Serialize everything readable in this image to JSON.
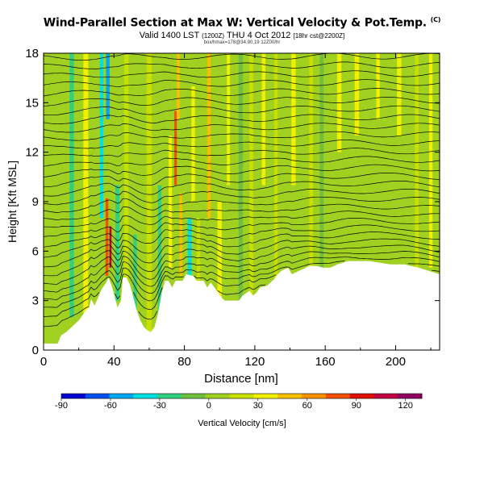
{
  "title": {
    "main": "Wind-Parallel Section at Max W: Vertical Velocity & Pot.Temp.",
    "main_mark": "(C)",
    "line2_a": "Valid 1400 LST",
    "line2_small1": "(1200Z)",
    "line2_b": "THU 4 Oct 2012",
    "line2_small2": "[18hr cst@2200Z]",
    "line3": "box/hmax=178@34.90,19 12Z00/hr"
  },
  "chart_data": {
    "type": "heatmap",
    "x": {
      "label": "Distance [nm]",
      "range": [
        0,
        225
      ],
      "ticks": [
        0,
        40,
        80,
        120,
        160,
        200
      ]
    },
    "y": {
      "label": "Height [Kft MSL]",
      "range": [
        0,
        18
      ],
      "ticks": [
        0,
        3,
        6,
        9,
        12,
        15,
        18
      ]
    },
    "colorbar": {
      "label": "Vertical Velocity [cm/s]",
      "range": [
        -90,
        130
      ],
      "ticks": [
        -90,
        -60,
        -30,
        0,
        30,
        60,
        90,
        120
      ],
      "colors": [
        "#0000d0",
        "#0050f0",
        "#00a8f0",
        "#00e0e0",
        "#30d080",
        "#70c040",
        "#a0d020",
        "#c8e000",
        "#f0f000",
        "#f8c000",
        "#f89000",
        "#f05000",
        "#e01000",
        "#c00040",
        "#900060"
      ]
    },
    "terrain_kft": [
      [
        0,
        0.4
      ],
      [
        8,
        0.4
      ],
      [
        10,
        0.9
      ],
      [
        13,
        1.1
      ],
      [
        16,
        1.4
      ],
      [
        18,
        1.6
      ],
      [
        20,
        1.8
      ],
      [
        22,
        2.1
      ],
      [
        24,
        2.4
      ],
      [
        26,
        2.6
      ],
      [
        27,
        3.1
      ],
      [
        29,
        2.7
      ],
      [
        31,
        3.2
      ],
      [
        33,
        3.7
      ],
      [
        35,
        4.0
      ],
      [
        37,
        4.4
      ],
      [
        39,
        3.8
      ],
      [
        41,
        3.0
      ],
      [
        42,
        2.6
      ],
      [
        44,
        3.0
      ],
      [
        45,
        4.4
      ],
      [
        47,
        4.4
      ],
      [
        49,
        4.0
      ],
      [
        51,
        3.2
      ],
      [
        53,
        2.4
      ],
      [
        55,
        1.8
      ],
      [
        57,
        1.4
      ],
      [
        59,
        1.2
      ],
      [
        61,
        1.1
      ],
      [
        63,
        1.4
      ],
      [
        65,
        2.2
      ],
      [
        67,
        3.4
      ],
      [
        69,
        4.2
      ],
      [
        71,
        4.2
      ],
      [
        73,
        3.8
      ],
      [
        75,
        4.2
      ],
      [
        79,
        4.2
      ],
      [
        81,
        4.6
      ],
      [
        85,
        4.5
      ],
      [
        87,
        4.2
      ],
      [
        91,
        4.2
      ],
      [
        93,
        3.8
      ],
      [
        95,
        4.1
      ],
      [
        97,
        3.8
      ],
      [
        99,
        3.5
      ],
      [
        101,
        3.2
      ],
      [
        103,
        3.0
      ],
      [
        111,
        3.0
      ],
      [
        113,
        3.3
      ],
      [
        117,
        3.6
      ],
      [
        119,
        3.3
      ],
      [
        121,
        3.5
      ],
      [
        123,
        3.8
      ],
      [
        127,
        3.9
      ],
      [
        129,
        4.1
      ],
      [
        131,
        4.3
      ],
      [
        133,
        4.6
      ],
      [
        135,
        4.8
      ],
      [
        139,
        5.0
      ],
      [
        141,
        4.6
      ],
      [
        147,
        4.9
      ],
      [
        151,
        5.1
      ],
      [
        155,
        5.1
      ],
      [
        159,
        5.0
      ],
      [
        163,
        5.0
      ],
      [
        167,
        5.2
      ],
      [
        173,
        5.4
      ],
      [
        185,
        5.4
      ],
      [
        197,
        5.2
      ],
      [
        205,
        5.2
      ],
      [
        213,
        5.0
      ],
      [
        219,
        4.8
      ],
      [
        225,
        4.6
      ]
    ],
    "vertical_velocity_bands": [
      {
        "x": 16,
        "w": 2.4,
        "v": -20,
        "z0": 2,
        "z1": 18
      },
      {
        "x": 24,
        "w": 2.8,
        "v": 30,
        "z0": 2,
        "z1": 18
      },
      {
        "x": 33,
        "w": 2.0,
        "v": -45,
        "z0": 8,
        "z1": 18
      },
      {
        "x": 36,
        "w": 1.6,
        "v": 85,
        "z0": 4.5,
        "z1": 9.2
      },
      {
        "x": 38,
        "w": 1.2,
        "v": 110,
        "z0": 5,
        "z1": 7.5
      },
      {
        "x": 36.5,
        "w": 2.0,
        "v": -50,
        "z0": 14,
        "z1": 18
      },
      {
        "x": 42,
        "w": 2.4,
        "v": -25,
        "z0": 3,
        "z1": 10
      },
      {
        "x": 47,
        "w": 2.5,
        "v": 25,
        "z0": 3,
        "z1": 18
      },
      {
        "x": 52,
        "w": 2.0,
        "v": -25,
        "z0": 1,
        "z1": 7
      },
      {
        "x": 60,
        "w": 3.0,
        "v": 25,
        "z0": 1,
        "z1": 18
      },
      {
        "x": 66,
        "w": 2.0,
        "v": -30,
        "z0": 2,
        "z1": 10
      },
      {
        "x": 72,
        "w": 2.0,
        "v": 30,
        "z0": 5,
        "z1": 13
      },
      {
        "x": 75,
        "w": 1.4,
        "v": 80,
        "z0": 10,
        "z1": 14.5
      },
      {
        "x": 78,
        "w": 1.6,
        "v": 55,
        "z0": 4.5,
        "z1": 9.5
      },
      {
        "x": 76.5,
        "w": 1.8,
        "v": 55,
        "z0": 14,
        "z1": 18
      },
      {
        "x": 83,
        "w": 2.2,
        "v": -35,
        "z0": 4,
        "z1": 8
      },
      {
        "x": 85,
        "w": 2.0,
        "v": 30,
        "z0": 9,
        "z1": 16
      },
      {
        "x": 88,
        "w": 2.0,
        "v": 20,
        "z0": 4,
        "z1": 8
      },
      {
        "x": 94,
        "w": 2.0,
        "v": 50,
        "z0": 8,
        "z1": 18
      },
      {
        "x": 100,
        "w": 2.5,
        "v": 40,
        "z0": 3,
        "z1": 9
      },
      {
        "x": 105,
        "w": 1.8,
        "v": 35,
        "z0": 10,
        "z1": 18
      },
      {
        "x": 112,
        "w": 2.5,
        "v": -10,
        "z0": 3,
        "z1": 18
      },
      {
        "x": 118,
        "w": 2.2,
        "v": 25,
        "z0": 3,
        "z1": 18
      },
      {
        "x": 125,
        "w": 2.0,
        "v": 35,
        "z0": 10,
        "z1": 18
      },
      {
        "x": 132,
        "w": 2.0,
        "v": 20,
        "z0": 4,
        "z1": 18
      },
      {
        "x": 142,
        "w": 2.5,
        "v": 30,
        "z0": 10,
        "z1": 18
      },
      {
        "x": 152,
        "w": 2.2,
        "v": 20,
        "z0": 5,
        "z1": 18
      },
      {
        "x": 158,
        "w": 2.2,
        "v": -10,
        "z0": 5,
        "z1": 18
      },
      {
        "x": 168,
        "w": 2.5,
        "v": 35,
        "z0": 12,
        "z1": 18
      },
      {
        "x": 178,
        "w": 2.5,
        "v": 30,
        "z0": 13,
        "z1": 18
      },
      {
        "x": 190,
        "w": 2.0,
        "v": 30,
        "z0": 14,
        "z1": 18
      },
      {
        "x": 202,
        "w": 2.5,
        "v": 35,
        "z0": 13,
        "z1": 18
      },
      {
        "x": 212,
        "w": 2.2,
        "v": 20,
        "z0": 5,
        "z1": 18
      },
      {
        "x": 220,
        "w": 2.0,
        "v": 35,
        "z0": 5,
        "z1": 18
      }
    ],
    "background_velocity": 12
  }
}
